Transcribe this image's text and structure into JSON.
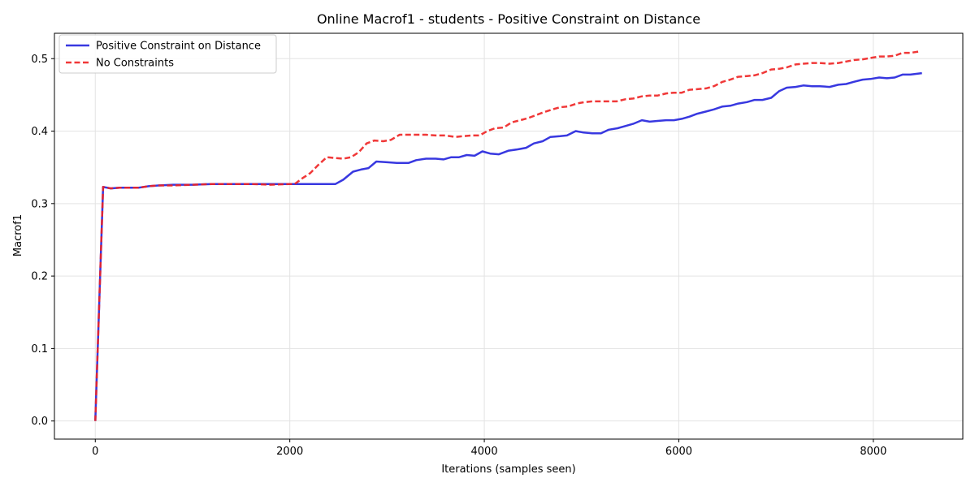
{
  "chart_data": {
    "type": "line",
    "title": "Online Macrof1 - students - Positive Constraint on Distance",
    "xlabel": "Iterations (samples seen)",
    "ylabel": "Macrof1",
    "xlim": [
      -420,
      8920
    ],
    "ylim": [
      -0.025,
      0.535
    ],
    "xticks": [
      0,
      2000,
      4000,
      6000,
      8000
    ],
    "xtick_labels": [
      "0",
      "2000",
      "4000",
      "6000",
      "8000"
    ],
    "yticks": [
      0.0,
      0.1,
      0.2,
      0.3,
      0.4,
      0.5
    ],
    "ytick_labels": [
      "0.0",
      "0.1",
      "0.2",
      "0.3",
      "0.4",
      "0.5"
    ],
    "grid": true,
    "legend_position": "upper-left",
    "series": [
      {
        "name": "Positive Constraint on Distance",
        "color": "#2222dd",
        "style": "solid",
        "x": [
          0,
          80,
          160,
          250,
          350,
          450,
          550,
          650,
          800,
          1000,
          1200,
          1400,
          1600,
          1800,
          2000,
          2200,
          2400,
          2470,
          2550,
          2650,
          2730,
          2810,
          2890,
          3000,
          3100,
          3220,
          3300,
          3400,
          3500,
          3580,
          3660,
          3740,
          3820,
          3900,
          3980,
          4060,
          4150,
          4250,
          4350,
          4430,
          4510,
          4600,
          4680,
          4780,
          4850,
          4940,
          5020,
          5110,
          5200,
          5280,
          5370,
          5450,
          5530,
          5620,
          5700,
          5780,
          5870,
          5950,
          6030,
          6110,
          6190,
          6280,
          6360,
          6450,
          6530,
          6610,
          6700,
          6780,
          6860,
          6950,
          7030,
          7110,
          7200,
          7280,
          7370,
          7450,
          7550,
          7640,
          7720,
          7800,
          7890,
          7970,
          8060,
          8140,
          8220,
          8300,
          8380,
          8500
        ],
        "y": [
          0.0,
          0.323,
          0.321,
          0.322,
          0.322,
          0.322,
          0.324,
          0.325,
          0.326,
          0.326,
          0.327,
          0.327,
          0.327,
          0.327,
          0.327,
          0.327,
          0.327,
          0.327,
          0.333,
          0.344,
          0.347,
          0.349,
          0.358,
          0.357,
          0.356,
          0.356,
          0.36,
          0.362,
          0.362,
          0.361,
          0.364,
          0.364,
          0.367,
          0.366,
          0.372,
          0.369,
          0.368,
          0.373,
          0.375,
          0.377,
          0.383,
          0.386,
          0.392,
          0.393,
          0.394,
          0.4,
          0.398,
          0.397,
          0.397,
          0.402,
          0.404,
          0.407,
          0.41,
          0.415,
          0.413,
          0.414,
          0.415,
          0.415,
          0.417,
          0.42,
          0.424,
          0.427,
          0.43,
          0.434,
          0.435,
          0.438,
          0.44,
          0.443,
          0.443,
          0.446,
          0.455,
          0.46,
          0.461,
          0.463,
          0.462,
          0.462,
          0.461,
          0.464,
          0.465,
          0.468,
          0.471,
          0.472,
          0.474,
          0.473,
          0.474,
          0.478,
          0.478,
          0.48
        ]
      },
      {
        "name": "No Constraints",
        "color": "#ee2222",
        "style": "dashed",
        "x": [
          0,
          80,
          160,
          250,
          350,
          450,
          550,
          650,
          800,
          1000,
          1200,
          1400,
          1600,
          1800,
          2000,
          2050,
          2130,
          2210,
          2290,
          2380,
          2460,
          2550,
          2630,
          2710,
          2790,
          2870,
          2960,
          3040,
          3130,
          3220,
          3300,
          3400,
          3500,
          3600,
          3700,
          3780,
          3870,
          3950,
          4030,
          4110,
          4200,
          4280,
          4370,
          4450,
          4530,
          4610,
          4700,
          4780,
          4860,
          4950,
          5030,
          5110,
          5200,
          5280,
          5360,
          5450,
          5530,
          5620,
          5700,
          5780,
          5870,
          5950,
          6030,
          6110,
          6200,
          6280,
          6360,
          6450,
          6530,
          6610,
          6700,
          6780,
          6860,
          6950,
          7030,
          7110,
          7200,
          7280,
          7370,
          7450,
          7550,
          7640,
          7720,
          7800,
          7890,
          7970,
          8060,
          8140,
          8220,
          8300,
          8380,
          8480
        ],
        "y": [
          0.0,
          0.323,
          0.321,
          0.322,
          0.322,
          0.322,
          0.324,
          0.325,
          0.325,
          0.326,
          0.327,
          0.327,
          0.327,
          0.326,
          0.327,
          0.327,
          0.335,
          0.342,
          0.353,
          0.364,
          0.363,
          0.362,
          0.364,
          0.371,
          0.383,
          0.387,
          0.386,
          0.388,
          0.395,
          0.395,
          0.395,
          0.395,
          0.394,
          0.394,
          0.392,
          0.393,
          0.394,
          0.394,
          0.4,
          0.404,
          0.405,
          0.412,
          0.415,
          0.418,
          0.422,
          0.426,
          0.43,
          0.433,
          0.434,
          0.438,
          0.44,
          0.441,
          0.441,
          0.441,
          0.441,
          0.444,
          0.445,
          0.448,
          0.449,
          0.449,
          0.452,
          0.453,
          0.453,
          0.457,
          0.458,
          0.459,
          0.462,
          0.468,
          0.471,
          0.475,
          0.476,
          0.477,
          0.48,
          0.485,
          0.486,
          0.488,
          0.492,
          0.493,
          0.494,
          0.494,
          0.493,
          0.494,
          0.496,
          0.498,
          0.499,
          0.501,
          0.503,
          0.503,
          0.504,
          0.508,
          0.508,
          0.51
        ]
      }
    ]
  }
}
